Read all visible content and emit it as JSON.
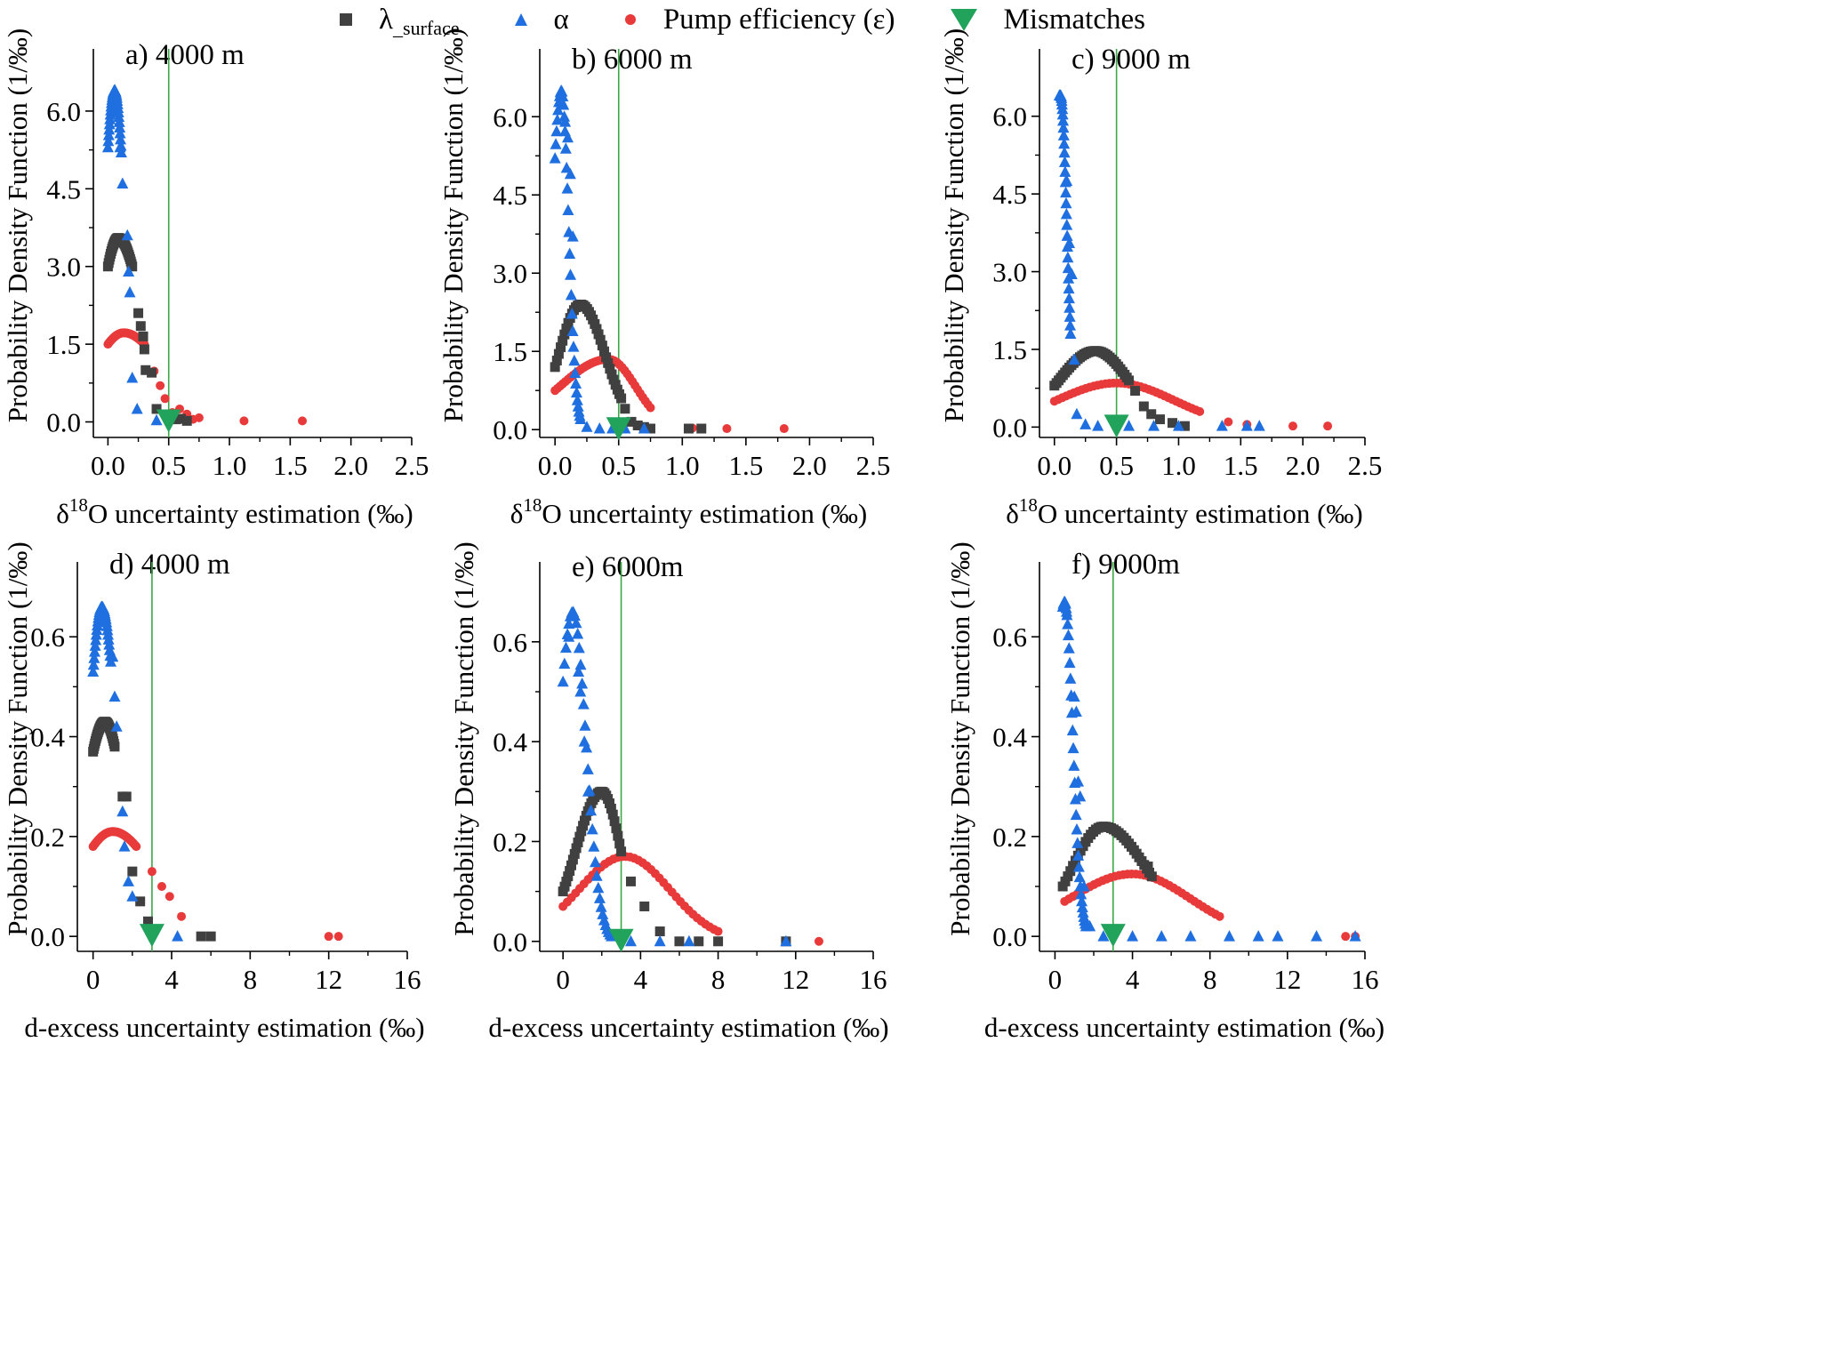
{
  "legend": {
    "items": [
      {
        "label": "λ",
        "sub": "_surface",
        "marker": "square",
        "color": "#404040"
      },
      {
        "label": "α",
        "marker": "triangle",
        "color": "#1f6fe0"
      },
      {
        "label": "Pump efficiency (ε)",
        "marker": "circle",
        "color": "#e83a3a"
      },
      {
        "label": "Mismatches",
        "marker": "triangle-down",
        "color": "#21a35b"
      }
    ]
  },
  "chart_data": [
    {
      "id": "a",
      "type": "scatter",
      "title": "a) 4000 m",
      "ylabel": "Probability Density Function (1/‰)",
      "xlabel": "δ18O uncertainty estimation (‰)",
      "xlim": [
        -0.12,
        2.5
      ],
      "ylim": [
        -0.3,
        7.2
      ],
      "xticks": [
        "0.0",
        "0.5",
        "1.0",
        "1.5",
        "2.0",
        "2.5"
      ],
      "yticks": [
        "0.0",
        "1.5",
        "3.0",
        "4.5",
        "6.0"
      ],
      "mismatch_x": 0.5,
      "lambda": {
        "peak": [
          0.085,
          3.55
        ],
        "left": [
          0.0,
          3.0
        ],
        "right": [
          0.2,
          3.0
        ],
        "tail": [
          [
            0.25,
            2.1
          ],
          [
            0.27,
            1.85
          ],
          [
            0.29,
            1.65
          ],
          [
            0.3,
            1.4
          ],
          [
            0.31,
            1.0
          ],
          [
            0.36,
            0.95
          ],
          [
            0.4,
            0.25
          ],
          [
            0.5,
            0.08
          ],
          [
            0.56,
            0.05
          ],
          [
            0.6,
            0.06
          ],
          [
            0.65,
            0.02
          ]
        ]
      },
      "alpha": {
        "peak": [
          0.055,
          6.4
        ],
        "left": [
          0.0,
          5.3
        ],
        "right": [
          0.11,
          5.2
        ],
        "tail": [
          [
            0.1,
            5.3
          ],
          [
            0.12,
            4.6
          ],
          [
            0.16,
            3.6
          ],
          [
            0.17,
            2.9
          ],
          [
            0.18,
            2.5
          ],
          [
            0.2,
            0.85
          ],
          [
            0.24,
            0.25
          ],
          [
            0.4,
            0.03
          ]
        ]
      },
      "pump": {
        "peak": [
          0.13,
          1.72
        ],
        "left": [
          0.0,
          1.5
        ],
        "right": [
          0.3,
          1.5
        ],
        "tail": [
          [
            0.38,
            0.98
          ],
          [
            0.43,
            0.7
          ],
          [
            0.47,
            0.45
          ],
          [
            0.53,
            0.18
          ],
          [
            0.59,
            0.25
          ],
          [
            0.65,
            0.15
          ],
          [
            0.7,
            0.05
          ],
          [
            0.75,
            0.08
          ],
          [
            1.12,
            0.02
          ],
          [
            1.6,
            0.02
          ]
        ]
      }
    },
    {
      "id": "b",
      "type": "scatter",
      "title": "b) 6000 m",
      "ylabel": "Probability Density Function (1/‰)",
      "xlabel": "δ18O uncertainty estimation (‰)",
      "xlim": [
        -0.12,
        2.5
      ],
      "ylim": [
        -0.15,
        7.3
      ],
      "xticks": [
        "0.0",
        "0.5",
        "1.0",
        "1.5",
        "2.0",
        "2.5"
      ],
      "yticks": [
        "0.0",
        "1.5",
        "3.0",
        "4.5",
        "6.0"
      ],
      "mismatch_x": 0.5,
      "lambda": {
        "peak": [
          0.2,
          2.4
        ],
        "left": [
          0.0,
          1.2
        ],
        "right": [
          0.52,
          0.6
        ],
        "tail": [
          [
            0.55,
            0.4
          ],
          [
            0.6,
            0.15
          ],
          [
            0.65,
            0.08
          ],
          [
            0.7,
            0.05
          ],
          [
            0.75,
            0.02
          ],
          [
            1.05,
            0.02
          ],
          [
            1.15,
            0.02
          ]
        ]
      },
      "alpha": {
        "peak": [
          0.05,
          6.5
        ],
        "left": [
          0.0,
          5.2
        ],
        "right": [
          0.2,
          0.2
        ],
        "tail": [
          [
            0.08,
            5.9
          ],
          [
            0.1,
            5.6
          ],
          [
            0.12,
            4.9
          ],
          [
            0.14,
            3.7
          ],
          [
            0.25,
            0.05
          ],
          [
            0.35,
            0.02
          ],
          [
            0.45,
            0.02
          ],
          [
            0.55,
            0.02
          ],
          [
            0.7,
            0.02
          ]
        ]
      },
      "pump": {
        "peak": [
          0.42,
          1.35
        ],
        "left": [
          0.0,
          0.75
        ],
        "right": [
          0.75,
          0.42
        ],
        "tail": [
          [
            1.08,
            0.03
          ],
          [
            1.35,
            0.02
          ],
          [
            1.8,
            0.02
          ]
        ]
      }
    },
    {
      "id": "c",
      "type": "scatter",
      "title": "c) 9000 m",
      "ylabel": "Probability Density Function (1/‰)",
      "xlabel": "δ18O uncertainty estimation (‰)",
      "xlim": [
        -0.12,
        2.5
      ],
      "ylim": [
        -0.2,
        7.3
      ],
      "xticks": [
        "0.0",
        "0.5",
        "1.0",
        "1.5",
        "2.0",
        "2.5"
      ],
      "yticks": [
        "0.0",
        "1.5",
        "3.0",
        "4.5",
        "6.0"
      ],
      "mismatch_x": 0.5,
      "lambda": {
        "peak": [
          0.33,
          1.47
        ],
        "left": [
          0.0,
          0.8
        ],
        "right": [
          0.6,
          0.9
        ],
        "tail": [
          [
            0.65,
            0.7
          ],
          [
            0.72,
            0.4
          ],
          [
            0.78,
            0.25
          ],
          [
            0.85,
            0.15
          ],
          [
            0.95,
            0.08
          ],
          [
            1.05,
            0.02
          ]
        ]
      },
      "alpha": {
        "peak": [
          0.05,
          6.4
        ],
        "left": [
          0.04,
          6.45
        ],
        "right": [
          0.13,
          1.8
        ],
        "tail": [
          [
            0.1,
            4.75
          ],
          [
            0.12,
            3.55
          ],
          [
            0.14,
            2.95
          ],
          [
            0.16,
            1.3
          ],
          [
            0.18,
            0.25
          ],
          [
            0.25,
            0.05
          ],
          [
            0.35,
            0.02
          ],
          [
            0.6,
            0.02
          ],
          [
            0.8,
            0.02
          ],
          [
            1.0,
            0.02
          ],
          [
            1.35,
            0.02
          ],
          [
            1.55,
            0.02
          ],
          [
            1.65,
            0.02
          ]
        ]
      },
      "pump": {
        "peak": [
          0.5,
          0.85
        ],
        "left": [
          0.0,
          0.5
        ],
        "right": [
          1.17,
          0.3
        ],
        "tail": [
          [
            1.4,
            0.1
          ],
          [
            1.55,
            0.05
          ],
          [
            1.92,
            0.02
          ],
          [
            2.2,
            0.02
          ]
        ]
      }
    },
    {
      "id": "d",
      "type": "scatter",
      "title": "d) 4000 m",
      "ylabel": "Probability Density Function (1/‰)",
      "xlabel": "d-excess uncertainty estimation (‰)",
      "xlim": [
        -0.8,
        16
      ],
      "ylim": [
        -0.03,
        0.75
      ],
      "xticks": [
        "0",
        "4",
        "8",
        "12",
        "16"
      ],
      "yticks": [
        "0.0",
        "0.2",
        "0.4",
        "0.6"
      ],
      "mismatch_x": 3.0,
      "lambda": {
        "peak": [
          0.6,
          0.43
        ],
        "left": [
          0.0,
          0.37
        ],
        "right": [
          1.1,
          0.38
        ],
        "tail": [
          [
            1.5,
            0.28
          ],
          [
            1.7,
            0.28
          ],
          [
            2.0,
            0.13
          ],
          [
            2.4,
            0.07
          ],
          [
            2.8,
            0.03
          ],
          [
            5.5,
            0.0
          ],
          [
            6.0,
            0.0
          ]
        ]
      },
      "alpha": {
        "peak": [
          0.45,
          0.66
        ],
        "left": [
          0.0,
          0.53
        ],
        "right": [
          0.9,
          0.55
        ],
        "tail": [
          [
            1.0,
            0.56
          ],
          [
            1.1,
            0.48
          ],
          [
            1.2,
            0.42
          ],
          [
            1.5,
            0.25
          ],
          [
            1.6,
            0.18
          ],
          [
            1.8,
            0.11
          ],
          [
            2.0,
            0.08
          ],
          [
            4.3,
            0.0
          ]
        ]
      },
      "pump": {
        "peak": [
          1.0,
          0.21
        ],
        "left": [
          0.0,
          0.18
        ],
        "right": [
          2.2,
          0.18
        ],
        "tail": [
          [
            3.0,
            0.13
          ],
          [
            3.5,
            0.1
          ],
          [
            3.9,
            0.08
          ],
          [
            4.5,
            0.04
          ],
          [
            12.0,
            0.0
          ],
          [
            12.5,
            0.0
          ]
        ]
      }
    },
    {
      "id": "e",
      "type": "scatter",
      "title": "e) 6000m",
      "ylabel": "Probability Density Function (1/‰)",
      "xlabel": "d-excess uncertainty estimation (‰)",
      "xlim": [
        -1.2,
        16
      ],
      "ylim": [
        -0.02,
        0.76
      ],
      "xticks": [
        "0",
        "4",
        "8",
        "12",
        "16"
      ],
      "yticks": [
        "0.0",
        "0.2",
        "0.4",
        "0.6"
      ],
      "mismatch_x": 3.0,
      "lambda": {
        "peak": [
          2.0,
          0.3
        ],
        "left": [
          0.0,
          0.1
        ],
        "right": [
          3.0,
          0.18
        ],
        "tail": [
          [
            3.5,
            0.12
          ],
          [
            4.2,
            0.07
          ],
          [
            5.0,
            0.02
          ],
          [
            6.0,
            0.0
          ],
          [
            7.0,
            0.0
          ],
          [
            8.0,
            0.0
          ],
          [
            11.5,
            0.0
          ]
        ]
      },
      "alpha": {
        "peak": [
          0.5,
          0.66
        ],
        "left": [
          0.0,
          0.52
        ],
        "right": [
          2.5,
          0.01
        ],
        "tail": [
          [
            0.3,
            0.61
          ],
          [
            0.8,
            0.54
          ],
          [
            0.9,
            0.5
          ],
          [
            1.1,
            0.4
          ],
          [
            1.3,
            0.3
          ],
          [
            3.5,
            0.0
          ],
          [
            5.0,
            0.0
          ],
          [
            6.5,
            0.0
          ],
          [
            11.5,
            0.0
          ]
        ]
      },
      "pump": {
        "peak": [
          3.2,
          0.17
        ],
        "left": [
          0.0,
          0.07
        ],
        "right": [
          8.0,
          0.02
        ],
        "tail": [
          [
            11.5,
            0.0
          ],
          [
            13.2,
            0.0
          ]
        ]
      }
    },
    {
      "id": "f",
      "type": "scatter",
      "title": "f) 9000m",
      "ylabel": "Probability Density Function (1/‰)",
      "xlabel": "d-excess uncertainty estimation (‰)",
      "xlim": [
        -0.8,
        16
      ],
      "ylim": [
        -0.03,
        0.75
      ],
      "xticks": [
        "0",
        "4",
        "8",
        "12",
        "16"
      ],
      "yticks": [
        "0.0",
        "0.2",
        "0.4",
        "0.6"
      ],
      "mismatch_x": 3.0,
      "lambda": {
        "peak": [
          2.5,
          0.22
        ],
        "left": [
          0.4,
          0.1
        ],
        "right": [
          5.0,
          0.12
        ],
        "tail": [
          [
            4.8,
            0.14
          ]
        ]
      },
      "alpha": {
        "peak": [
          0.5,
          0.67
        ],
        "left": [
          0.4,
          0.66
        ],
        "right": [
          1.6,
          0.02
        ],
        "tail": [
          [
            0.6,
            0.65
          ],
          [
            1.0,
            0.48
          ],
          [
            1.1,
            0.45
          ],
          [
            1.2,
            0.31
          ],
          [
            1.3,
            0.28
          ],
          [
            1.5,
            0.1
          ],
          [
            1.8,
            0.02
          ],
          [
            2.5,
            0.0
          ],
          [
            4.0,
            0.0
          ],
          [
            5.5,
            0.0
          ],
          [
            7.0,
            0.0
          ],
          [
            9.0,
            0.0
          ],
          [
            10.5,
            0.0
          ],
          [
            11.5,
            0.0
          ],
          [
            13.5,
            0.0
          ],
          [
            15.5,
            0.0
          ]
        ]
      },
      "pump": {
        "peak": [
          4.0,
          0.125
        ],
        "left": [
          0.5,
          0.07
        ],
        "right": [
          8.5,
          0.04
        ],
        "tail": [
          [
            15.0,
            0.0
          ],
          [
            15.5,
            0.0
          ]
        ]
      }
    }
  ]
}
